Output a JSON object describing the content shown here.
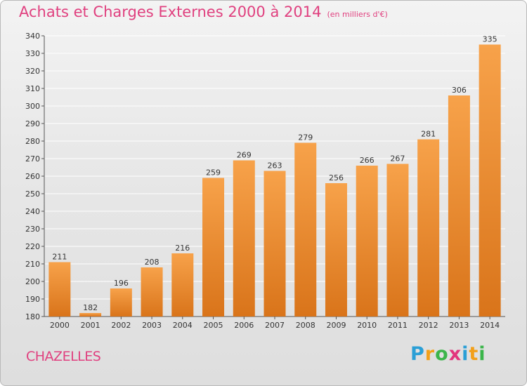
{
  "title": "Achats et Charges Externes 2000 à 2014",
  "subtitle": "(en milliers d'€)",
  "city": "CHAZELLES",
  "brand": {
    "letters": [
      "P",
      "r",
      "o",
      "x",
      "i",
      "t",
      "i"
    ],
    "colors": [
      "#2a9fd6",
      "#f2a01a",
      "#3bb54a",
      "#e2347d",
      "#2a9fd6",
      "#f2a01a",
      "#3bb54a"
    ]
  },
  "colors": {
    "title": "#e0407f",
    "bar_light": "#f7a24a",
    "bar_dark": "#d9741a",
    "grid": "#ffffff"
  },
  "chart_data": {
    "type": "bar",
    "categories": [
      "2000",
      "2001",
      "2002",
      "2003",
      "2004",
      "2005",
      "2006",
      "2007",
      "2008",
      "2009",
      "2010",
      "2011",
      "2012",
      "2013",
      "2014"
    ],
    "values": [
      211,
      182,
      196,
      208,
      216,
      259,
      269,
      263,
      279,
      256,
      266,
      267,
      281,
      306,
      335
    ],
    "ylim": [
      180,
      340
    ],
    "yticks": [
      180,
      190,
      200,
      210,
      220,
      230,
      240,
      250,
      260,
      270,
      280,
      290,
      300,
      310,
      320,
      330,
      340
    ],
    "grid": true,
    "title": "Achats et Charges Externes 2000 à 2014",
    "xlabel": "",
    "ylabel": ""
  }
}
